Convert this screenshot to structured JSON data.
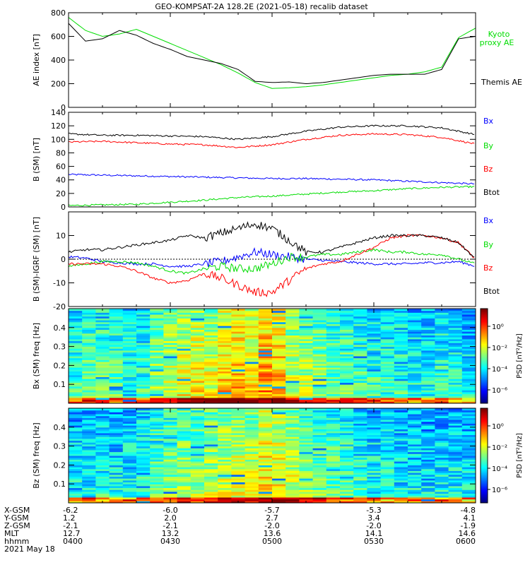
{
  "title": "GEO-KOMPSAT-2A 128.2E (2021-05-18) recalib dataset",
  "chart_data": [
    {
      "id": "ae",
      "type": "line",
      "ylabel": "AE index [nT]",
      "ylim": [
        0,
        800
      ],
      "yticks": [
        0,
        200,
        400,
        600,
        800
      ],
      "x": [
        0,
        5,
        10,
        15,
        20,
        25,
        30,
        35,
        40,
        45,
        50,
        55,
        60,
        65,
        70,
        75,
        80,
        85,
        90,
        95,
        100,
        105,
        110,
        115,
        120
      ],
      "series": [
        {
          "name": "Kyoto proxy AE",
          "color": "#00dd00",
          "values": [
            760,
            650,
            600,
            620,
            660,
            600,
            540,
            480,
            420,
            360,
            290,
            210,
            160,
            165,
            175,
            190,
            210,
            230,
            250,
            270,
            280,
            300,
            340,
            590,
            670
          ]
        },
        {
          "name": "Themis AE",
          "color": "#000000",
          "values": [
            710,
            560,
            580,
            650,
            610,
            540,
            490,
            430,
            400,
            370,
            320,
            220,
            210,
            215,
            200,
            210,
            230,
            250,
            270,
            280,
            280,
            280,
            320,
            580,
            600
          ]
        }
      ]
    },
    {
      "id": "bsm",
      "type": "line",
      "ylabel": "B (SM) [nT]",
      "ylim": [
        0,
        140
      ],
      "yticks": [
        0,
        20,
        40,
        60,
        80,
        100,
        120,
        140
      ],
      "x": [
        0,
        10,
        20,
        30,
        40,
        50,
        60,
        70,
        80,
        90,
        100,
        110,
        120
      ],
      "series": [
        {
          "name": "Bx",
          "color": "#0000ff",
          "values": [
            48,
            47,
            46,
            45,
            44,
            43,
            42,
            42,
            41,
            40,
            38,
            36,
            34
          ]
        },
        {
          "name": "By",
          "color": "#00dd00",
          "values": [
            2,
            3,
            4,
            7,
            10,
            14,
            16,
            19,
            22,
            24,
            27,
            29,
            30
          ]
        },
        {
          "name": "Bz",
          "color": "#ff0000",
          "values": [
            96,
            97,
            95,
            93,
            92,
            88,
            92,
            100,
            106,
            108,
            107,
            103,
            93
          ]
        },
        {
          "name": "Btot",
          "color": "#000000",
          "values": [
            108,
            106,
            106,
            105,
            104,
            100,
            104,
            112,
            118,
            120,
            120,
            117,
            107
          ]
        }
      ]
    },
    {
      "id": "bres",
      "type": "line",
      "ylabel": "B (SM)-IGRF (SM) [nT]",
      "ylim": [
        -20,
        20
      ],
      "yticks": [
        -20,
        -10,
        0,
        10
      ],
      "x": [
        0,
        5,
        10,
        15,
        20,
        25,
        30,
        35,
        40,
        45,
        50,
        55,
        60,
        65,
        70,
        75,
        80,
        85,
        90,
        95,
        100,
        105,
        110,
        115,
        120
      ],
      "series": [
        {
          "name": "Bx",
          "color": "#0000ff",
          "values": [
            1,
            0.5,
            -1,
            -1.5,
            -2,
            -2,
            -3,
            -3,
            -2,
            -1,
            1,
            3,
            2,
            1,
            0,
            -0.5,
            -1,
            -1.5,
            -2,
            -2,
            -2,
            -1.5,
            -1.5,
            -1,
            -3
          ]
        },
        {
          "name": "By",
          "color": "#00dd00",
          "values": [
            -3,
            -2,
            -1,
            -1,
            -1.5,
            -3,
            -5,
            -6,
            -4,
            -3,
            -4,
            -4,
            -2,
            1,
            1,
            2,
            2,
            3,
            4,
            3,
            3,
            2,
            2,
            0,
            -2
          ]
        },
        {
          "name": "Bz",
          "color": "#ff0000",
          "values": [
            -2,
            -2,
            -2,
            -3,
            -5,
            -8,
            -10,
            -9,
            -6,
            -8,
            -11,
            -14,
            -14,
            -9,
            -4,
            -2,
            -1,
            2,
            5,
            9,
            10,
            10,
            9,
            7,
            0
          ]
        },
        {
          "name": "Btot",
          "color": "#000000",
          "values": [
            3,
            4,
            4,
            5,
            6,
            7,
            8,
            10,
            9,
            11,
            13,
            15,
            13,
            8,
            3,
            3,
            5,
            7,
            9,
            10,
            10,
            10,
            9,
            7,
            0
          ]
        }
      ]
    },
    {
      "id": "spec_bx",
      "type": "heatmap",
      "ylabel": "Bx (SM) freq [Hz]",
      "yticks": [
        0.1,
        0.2,
        0.3,
        0.4
      ],
      "ylim": [
        0,
        0.5
      ],
      "columns": 30,
      "rows": 50,
      "level": [
        0.45,
        0.5,
        0.5,
        0.48,
        0.45,
        0.45,
        0.55,
        0.6,
        0.62,
        0.65,
        0.62,
        0.7,
        0.72,
        0.68,
        0.75,
        0.72,
        0.6,
        0.58,
        0.55,
        0.5,
        0.5,
        0.48,
        0.45,
        0.45,
        0.45,
        0.42,
        0.42,
        0.45,
        0.42,
        0.4
      ]
    },
    {
      "id": "spec_bz",
      "type": "heatmap",
      "ylabel": "Bz (SM) freq [Hz]",
      "yticks": [
        0.1,
        0.2,
        0.3,
        0.4
      ],
      "ylim": [
        0,
        0.5
      ],
      "columns": 30,
      "rows": 50,
      "level": [
        0.4,
        0.4,
        0.42,
        0.4,
        0.42,
        0.45,
        0.5,
        0.52,
        0.55,
        0.55,
        0.58,
        0.6,
        0.62,
        0.6,
        0.68,
        0.65,
        0.6,
        0.55,
        0.5,
        0.5,
        0.48,
        0.45,
        0.42,
        0.42,
        0.4,
        0.4,
        0.38,
        0.4,
        0.4,
        0.38
      ]
    }
  ],
  "legends": {
    "ae": [
      "Kyoto proxy AE",
      "Themis AE"
    ],
    "b": [
      "Bx",
      "By",
      "Bz",
      "Btot"
    ]
  },
  "colorbar": {
    "label": "PSD [nT²/Hz]",
    "ticks": [
      "10⁰",
      "10⁻²",
      "10⁻⁴",
      "10⁻⁶"
    ]
  },
  "ephemeris": {
    "row_labels": [
      "X-GSM",
      "Y-GSM",
      "Z-GSM",
      "MLT",
      "hhmm"
    ],
    "columns": [
      {
        "x": -6.2,
        "y": 1.2,
        "z": -2.1,
        "mlt": 12.7,
        "time": "0400"
      },
      {
        "x": -6.0,
        "y": 2.0,
        "z": -2.1,
        "mlt": 13.2,
        "time": "0430"
      },
      {
        "x": -5.7,
        "y": 2.7,
        "z": -2.0,
        "mlt": 13.6,
        "time": "0500"
      },
      {
        "x": -5.3,
        "y": 3.4,
        "z": -2.0,
        "mlt": 14.1,
        "time": "0530"
      },
      {
        "x": -4.8,
        "y": 4.1,
        "z": -1.9,
        "mlt": 14.6,
        "time": "0600"
      }
    ],
    "date": "2021 May 18"
  }
}
